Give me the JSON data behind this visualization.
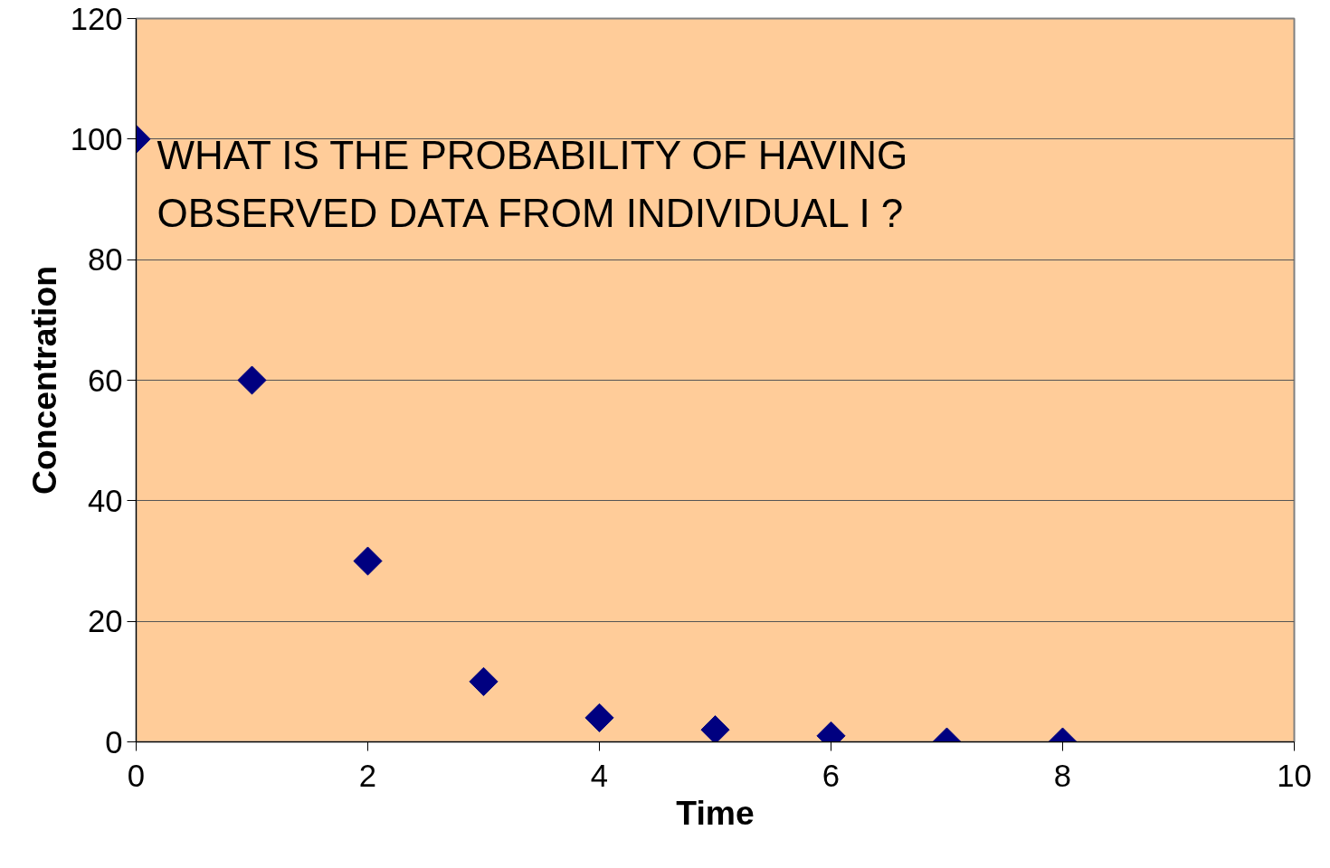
{
  "chart_data": {
    "type": "scatter",
    "xlabel": "Time",
    "ylabel": "Concentration",
    "x": [
      0,
      1,
      2,
      3,
      4,
      5,
      6,
      7,
      8
    ],
    "series": [
      {
        "color": "#000080",
        "values": [
          100,
          60,
          30,
          10,
          4,
          2,
          1,
          0,
          0
        ]
      }
    ],
    "marker": "diamond",
    "xlim": [
      0,
      10
    ],
    "ylim": [
      0,
      120
    ],
    "xticks": [
      0,
      2,
      4,
      6,
      8,
      10
    ],
    "yticks": [
      0,
      20,
      40,
      60,
      80,
      100,
      120
    ],
    "grid": "y",
    "annotations": [
      "WHAT IS THE PROBABILITY OF HAVING\nOBSERVED DATA FROM INDIVIDUAL I ?"
    ]
  }
}
